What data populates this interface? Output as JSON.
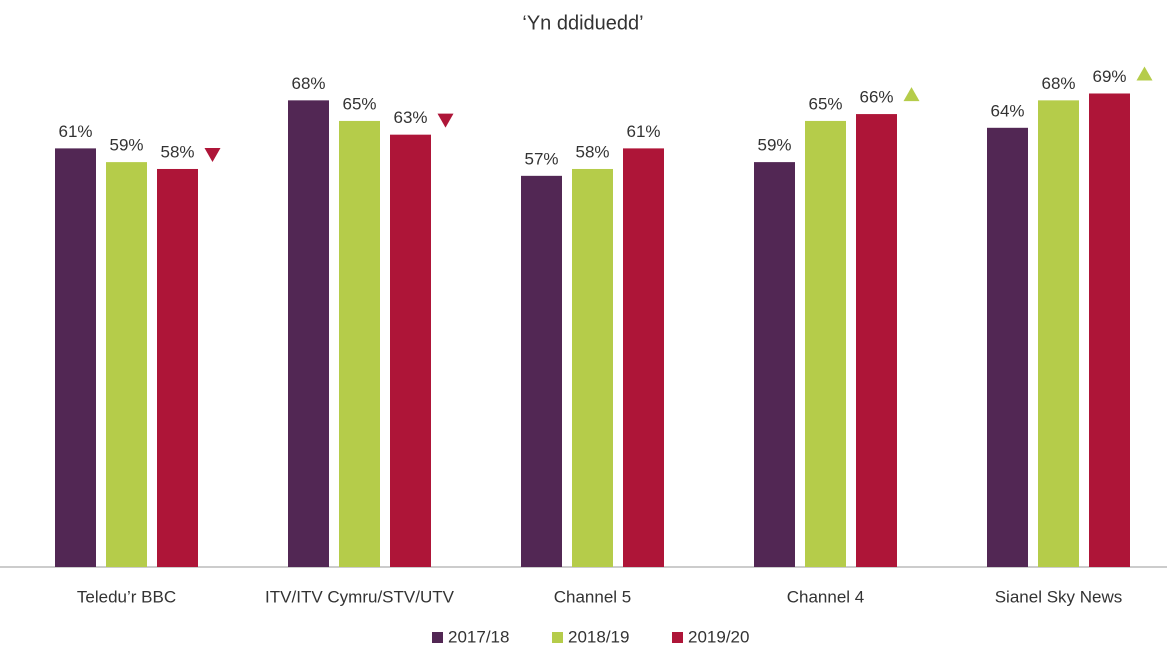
{
  "chart_data": {
    "type": "bar",
    "title": "‘Yn ddiduedd’",
    "categories": [
      "Teledu’r BBC",
      "ITV/ITV Cymru/STV/UTV",
      "Channel 5",
      "Channel 4",
      "Sianel Sky News"
    ],
    "series": [
      {
        "name": "2017/18",
        "color": "#522754",
        "values": [
          61,
          68,
          57,
          59,
          64
        ],
        "value_labels": [
          "61%",
          "68%",
          "57%",
          "59%",
          "64%"
        ]
      },
      {
        "name": "2018/19",
        "color": "#b5cc4a",
        "values": [
          59,
          65,
          58,
          65,
          68
        ],
        "value_labels": [
          "59%",
          "65%",
          "58%",
          "65%",
          "68%"
        ]
      },
      {
        "name": "2019/20",
        "color": "#ae1538",
        "values": [
          58,
          63,
          61,
          66,
          69
        ],
        "value_labels": [
          "58%",
          "63%",
          "61%",
          "66%",
          "69%"
        ],
        "change": [
          "down",
          "down",
          null,
          "up",
          "up"
        ]
      }
    ],
    "change_colors": {
      "down": "#ae1538",
      "up": "#b5cc4a"
    },
    "ylim": [
      0,
      80
    ],
    "legend": "bottom"
  }
}
